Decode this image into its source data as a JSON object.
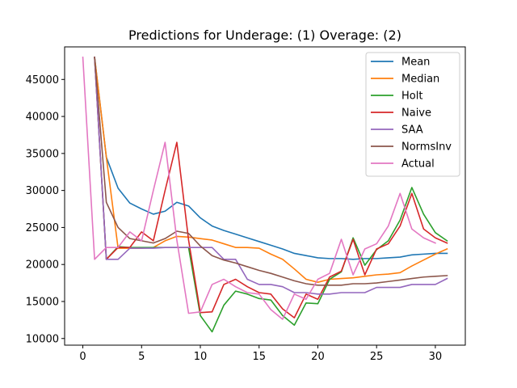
{
  "chart_data": {
    "type": "line",
    "title": "Predictions for Underage: (1) Overage: (2)",
    "xlabel": "",
    "ylabel": "",
    "xlim": [
      -1.55,
      32.55
    ],
    "ylim": [
      9100,
      49400
    ],
    "xticks": [
      0,
      5,
      10,
      15,
      20,
      25,
      30
    ],
    "yticks": [
      10000,
      15000,
      20000,
      25000,
      30000,
      35000,
      40000,
      45000
    ],
    "legend_position": "top-right",
    "grid": false,
    "series": [
      {
        "name": "Mean",
        "color": "#1f77b4",
        "x": [
          1,
          2,
          3,
          4,
          5,
          6,
          7,
          8,
          9,
          10,
          11,
          12,
          13,
          14,
          15,
          16,
          17,
          18,
          19,
          20,
          21,
          22,
          23,
          24,
          25,
          26,
          27,
          28,
          29,
          30,
          31
        ],
        "values": [
          48000,
          34500,
          30300,
          28300,
          27500,
          26800,
          27200,
          28400,
          27900,
          26300,
          25200,
          24600,
          24100,
          23600,
          23100,
          22600,
          22100,
          21500,
          21200,
          20900,
          20800,
          20800,
          20700,
          20800,
          20800,
          20900,
          21000,
          21300,
          21400,
          21500,
          21500
        ]
      },
      {
        "name": "Median",
        "color": "#ff7f0e",
        "x": [
          1,
          2,
          3,
          4,
          5,
          6,
          7,
          8,
          9,
          10,
          11,
          12,
          13,
          14,
          15,
          16,
          17,
          18,
          19,
          20,
          21,
          22,
          23,
          24,
          25,
          26,
          27,
          28,
          29,
          30,
          31
        ],
        "values": [
          48000,
          34500,
          22200,
          22200,
          22200,
          22300,
          23200,
          23800,
          23700,
          23500,
          23300,
          22800,
          22300,
          22300,
          22200,
          21400,
          20700,
          19400,
          18000,
          17600,
          18000,
          18100,
          18200,
          18400,
          18600,
          18700,
          18900,
          19800,
          20600,
          21400,
          22100
        ]
      },
      {
        "name": "Holt",
        "color": "#2ca02c",
        "x": [
          1,
          2,
          3,
          4,
          5,
          6,
          7,
          8,
          9,
          10,
          11,
          12,
          13,
          14,
          15,
          16,
          17,
          18,
          19,
          20,
          21,
          22,
          23,
          24,
          25,
          26,
          27,
          28,
          29,
          30,
          31
        ],
        "values": [
          48000,
          20700,
          22400,
          22300,
          22300,
          22300,
          22300,
          22300,
          22300,
          13100,
          10900,
          14500,
          16400,
          16000,
          15400,
          15200,
          13100,
          11800,
          14800,
          14700,
          18000,
          19000,
          23600,
          19900,
          22000,
          23200,
          26000,
          30400,
          26800,
          24300,
          23200
        ]
      },
      {
        "name": "Naive",
        "color": "#d62728",
        "x": [
          1,
          2,
          3,
          4,
          5,
          6,
          7,
          8,
          9,
          10,
          11,
          12,
          13,
          14,
          15,
          16,
          17,
          18,
          19,
          20,
          21,
          22,
          23,
          24,
          25,
          26,
          27,
          28,
          29,
          30,
          31
        ],
        "values": [
          48000,
          20700,
          22300,
          22300,
          24400,
          23200,
          30000,
          36500,
          23300,
          13500,
          13600,
          17300,
          18000,
          17000,
          16200,
          16000,
          14000,
          12800,
          16000,
          15300,
          18300,
          19100,
          23400,
          18600,
          22100,
          22800,
          25200,
          29600,
          24800,
          23600,
          22900
        ]
      },
      {
        "name": "SAA",
        "color": "#9467bd",
        "x": [
          1,
          2,
          3,
          4,
          5,
          6,
          7,
          8,
          9,
          10,
          11,
          12,
          13,
          14,
          15,
          16,
          17,
          18,
          19,
          20,
          21,
          22,
          23,
          24,
          25,
          26,
          27,
          28,
          29,
          30,
          31
        ],
        "values": [
          48000,
          20700,
          20700,
          22200,
          22200,
          22200,
          22300,
          22300,
          22300,
          22300,
          22300,
          20700,
          20700,
          18000,
          17300,
          17300,
          17000,
          16200,
          16200,
          16000,
          16000,
          16200,
          16200,
          16200,
          16900,
          16900,
          16900,
          17300,
          17300,
          17300,
          18100
        ]
      },
      {
        "name": "NormsInv",
        "color": "#8c564b",
        "x": [
          1,
          2,
          3,
          4,
          5,
          6,
          7,
          8,
          9,
          10,
          11,
          12,
          13,
          14,
          15,
          16,
          17,
          18,
          19,
          20,
          21,
          22,
          23,
          24,
          25,
          26,
          27,
          28,
          29,
          30,
          31
        ],
        "values": [
          48000,
          28400,
          25000,
          23500,
          23200,
          22900,
          23500,
          24500,
          24200,
          22500,
          21200,
          20600,
          20200,
          19700,
          19200,
          18800,
          18300,
          17800,
          17400,
          17200,
          17200,
          17200,
          17400,
          17400,
          17500,
          17700,
          17900,
          18100,
          18300,
          18400,
          18500
        ]
      },
      {
        "name": "Actual",
        "color": "#e377c2",
        "x": [
          0,
          1,
          2,
          3,
          4,
          5,
          6,
          7,
          8,
          9,
          10,
          11,
          12,
          13,
          14,
          15,
          16,
          17,
          18,
          19,
          20,
          21,
          22,
          23,
          24,
          25,
          26,
          27,
          28,
          29,
          30
        ],
        "values": [
          48000,
          20700,
          22300,
          22300,
          24400,
          23200,
          30000,
          36500,
          23300,
          13400,
          13600,
          17300,
          18000,
          17000,
          16200,
          16000,
          13900,
          12600,
          16000,
          15300,
          18000,
          18800,
          23400,
          18600,
          22100,
          22800,
          25200,
          29600,
          24800,
          23600,
          22900
        ]
      }
    ]
  }
}
